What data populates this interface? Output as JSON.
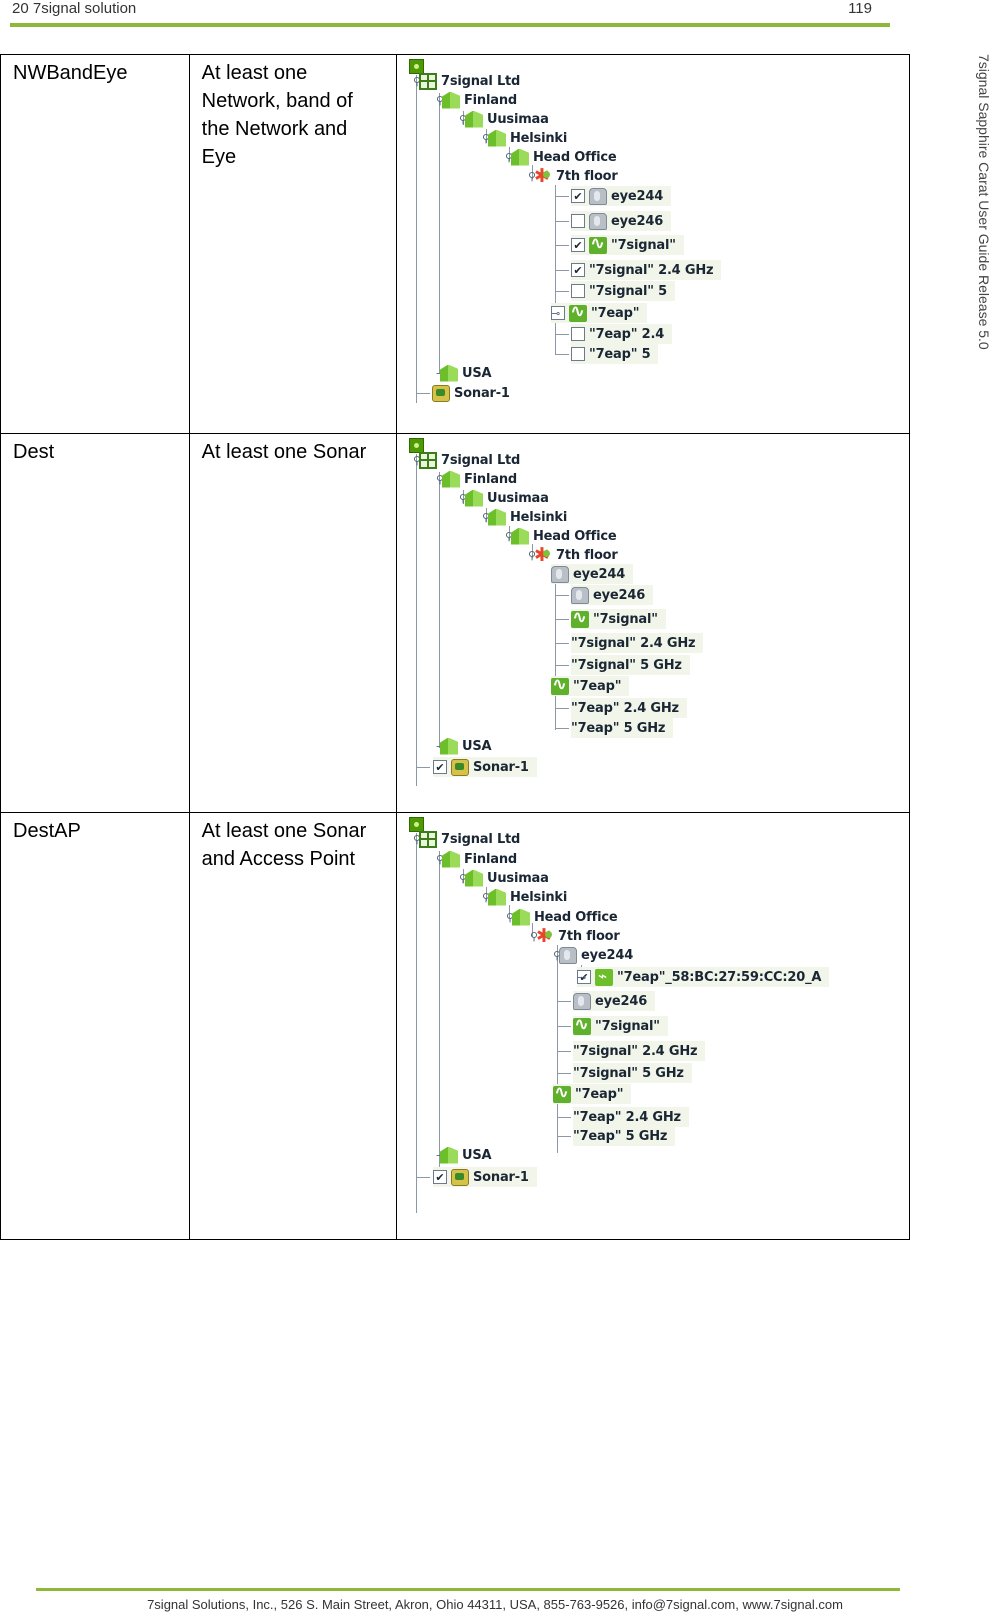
{
  "header": {
    "left": "20 7signal solution",
    "right": "119"
  },
  "side_title": "7signal Sapphire Carat User Guide Release 5.0",
  "footer": "7signal Solutions, Inc., 526 S. Main Street, Akron, Ohio 44311, USA, 855-763-9526, info@7signal.com, www.7signal.com",
  "rows": [
    {
      "name": "NWBandEye",
      "desc": "At least one Network, band of the Network and Eye",
      "tree": {
        "company": "7signal Ltd",
        "country": "Finland",
        "region": "Uusimaa",
        "city": "Helsinki",
        "site": "Head Office",
        "floor": "7th floor",
        "eye1": "eye244",
        "eye2": "eye246",
        "net1": "\"7signal\"",
        "net1_band1": "\"7signal\" 2.4 GHz",
        "net1_band2": "\"7signal\" 5",
        "net2": "\"7eap\"",
        "net2_band1": "\"7eap\" 2.4",
        "net2_band2": "\"7eap\" 5",
        "country2": "USA",
        "sonar": "Sonar-1",
        "checks": {
          "eye1": "✔",
          "eye2": "",
          "net1": "✔",
          "net1_band1": "✔",
          "net1_band2": "",
          "net2": "",
          "net2_band1": "",
          "net2_band2": ""
        }
      }
    },
    {
      "name": "Dest",
      "desc": "At least one Sonar",
      "tree": {
        "company": "7signal Ltd",
        "country": "Finland",
        "region": "Uusimaa",
        "city": "Helsinki",
        "site": "Head Office",
        "floor": "7th floor",
        "eye1": "eye244",
        "eye2": "eye246",
        "net1": "\"7signal\"",
        "net1_band1": "\"7signal\" 2.4 GHz",
        "net1_band2": "\"7signal\" 5 GHz",
        "net2": "\"7eap\"",
        "net2_band1": "\"7eap\" 2.4 GHz",
        "net2_band2": "\"7eap\" 5 GHz",
        "country2": "USA",
        "sonar": "Sonar-1",
        "checks": {
          "sonar": "✔"
        }
      }
    },
    {
      "name": "DestAP",
      "desc": "At least one Sonar and Access Point",
      "tree": {
        "company": "7signal Ltd",
        "country": "Finland",
        "region": "Uusimaa",
        "city": "Helsinki",
        "site": "Head Office",
        "floor": "7th floor",
        "eye1": "eye244",
        "ap": "\"7eap\"_58:BC:27:59:CC:20_A",
        "eye2": "eye246",
        "net1": "\"7signal\"",
        "net1_band1": "\"7signal\" 2.4 GHz",
        "net1_band2": "\"7signal\" 5 GHz",
        "net2": "\"7eap\"",
        "net2_band1": "\"7eap\" 2.4 GHz",
        "net2_band2": "\"7eap\" 5 GHz",
        "country2": "USA",
        "sonar": "Sonar-1",
        "checks": {
          "ap": "✔",
          "sonar": "✔"
        }
      }
    }
  ]
}
